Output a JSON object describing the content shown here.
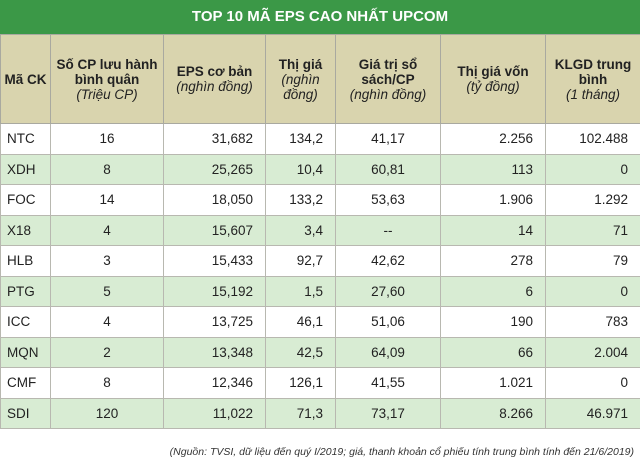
{
  "title": "TOP 10 MÃ EPS CAO NHẤT UPCOM",
  "table": {
    "headers": [
      {
        "title": "Mã CK"
      },
      {
        "title": "Số CP lưu hành bình quân",
        "unit": "(Triệu CP)"
      },
      {
        "title": "EPS cơ bản",
        "unit": "(nghìn đồng)"
      },
      {
        "title": "Thị giá",
        "unit": "(nghìn đồng)"
      },
      {
        "title": "Giá trị sổ sách/CP",
        "unit": "(nghìn đồng)"
      },
      {
        "title": "Thị giá vốn",
        "unit": "(tỷ đồng)"
      },
      {
        "title": "KLGD trung bình",
        "unit": "(1 tháng)"
      }
    ],
    "rows": [
      [
        "NTC",
        "16",
        "31,682",
        "134,2",
        "41,17",
        "2.256",
        "102.488"
      ],
      [
        "XDH",
        "8",
        "25,265",
        "10,4",
        "60,81",
        "113",
        "0"
      ],
      [
        "FOC",
        "14",
        "18,050",
        "133,2",
        "53,63",
        "1.906",
        "1.292"
      ],
      [
        "X18",
        "4",
        "15,607",
        "3,4",
        "--",
        "14",
        "71"
      ],
      [
        "HLB",
        "3",
        "15,433",
        "92,7",
        "42,62",
        "278",
        "79"
      ],
      [
        "PTG",
        "5",
        "15,192",
        "1,5",
        "27,60",
        "6",
        "0"
      ],
      [
        "ICC",
        "4",
        "13,725",
        "46,1",
        "51,06",
        "190",
        "783"
      ],
      [
        "MQN",
        "2",
        "13,348",
        "42,5",
        "64,09",
        "66",
        "2.004"
      ],
      [
        "CMF",
        "8",
        "12,346",
        "126,1",
        "41,55",
        "1.021",
        "0"
      ],
      [
        "SDI",
        "120",
        "11,022",
        "71,3",
        "73,17",
        "8.266",
        "46.971"
      ]
    ]
  },
  "footnote": "(Nguồn: TVSI, dữ liệu đến quý I/2019; giá, thanh khoản cổ phiếu tính trung bình tính đến 21/6/2019)"
}
